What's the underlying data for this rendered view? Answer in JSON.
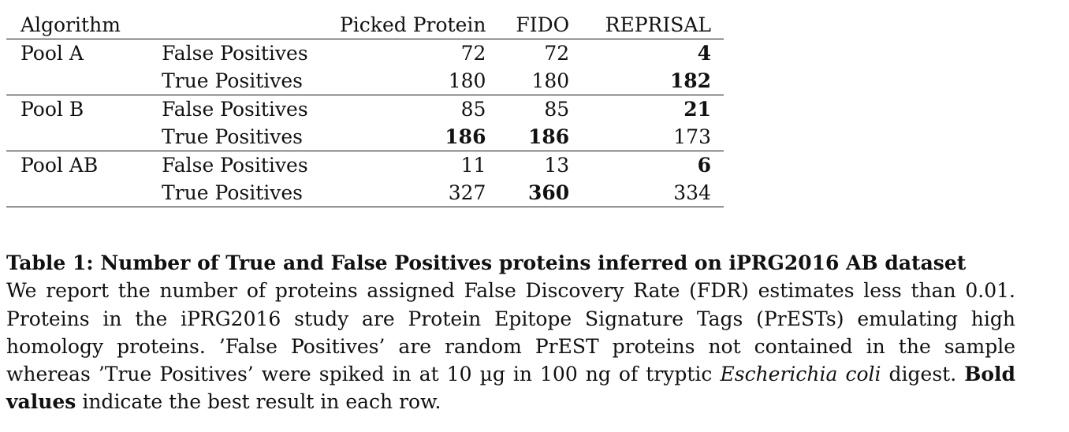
{
  "table": {
    "headers": {
      "algorithm": "Algorithm",
      "metric": "",
      "picked": "Picked Protein",
      "fido": "FIDO",
      "reprisal": "REPRISAL"
    },
    "groups": [
      {
        "name": "Pool A",
        "rows": [
          {
            "metric": "False Positives",
            "picked": "72",
            "fido": "72",
            "reprisal": "4"
          },
          {
            "metric": "True Positives",
            "picked": "180",
            "fido": "180",
            "reprisal": "182"
          }
        ]
      },
      {
        "name": "Pool B",
        "rows": [
          {
            "metric": "False Positives",
            "picked": "85",
            "fido": "85",
            "reprisal": "21"
          },
          {
            "metric": "True Positives",
            "picked": "186",
            "fido": "186",
            "reprisal": "173"
          }
        ]
      },
      {
        "name": "Pool AB",
        "rows": [
          {
            "metric": "False Positives",
            "picked": "11",
            "fido": "13",
            "reprisal": "6"
          },
          {
            "metric": "True Positives",
            "picked": "327",
            "fido": "360",
            "reprisal": "334"
          }
        ]
      }
    ]
  },
  "caption": {
    "title": "Table 1: Number of True and False Positives proteins inferred on iPRG2016 AB dataset",
    "body_part1": "We report the number of proteins assigned False Discovery Rate (FDR) estimates less than 0.01. Proteins in the iPRG2016 study are Protein Epitope Signature Tags (PrESTs) emulating high homology proteins. ’False Positives’ are random PrEST proteins not contained in the sample whereas ’True Positives’ were spiked in at 10 µg in 100 ng of tryptic ",
    "body_italic": "Escherichia coli",
    "body_part2": " digest. ",
    "body_bold": "Bold values",
    "body_part3": " indicate the best result in each row."
  }
}
